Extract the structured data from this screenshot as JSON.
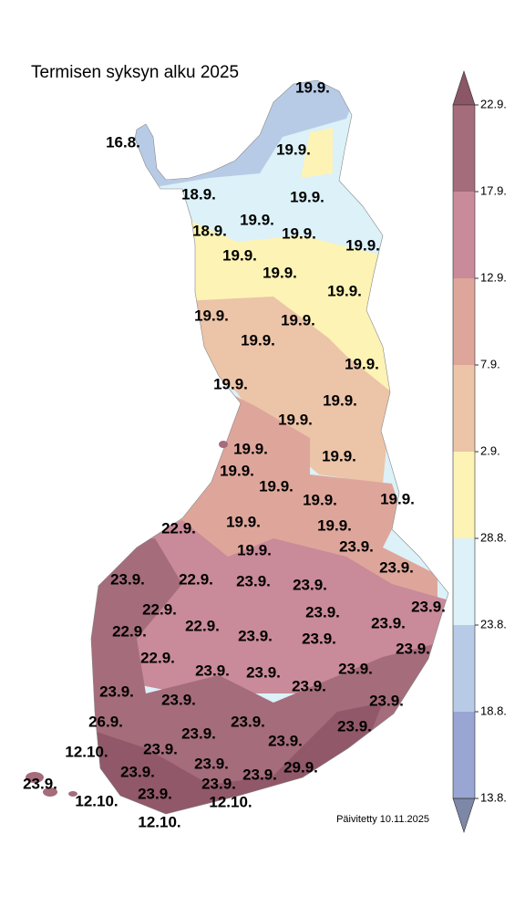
{
  "title": "Termisen syksyn alku 2025",
  "updated": "Päivitetty 10.11.2025",
  "labels": [
    "19.9.",
    "16.8.",
    "19.9.",
    "18.9.",
    "19.9.",
    "19.9.",
    "18.9.",
    "19.9.",
    "19.9.",
    "19.9.",
    "19.9.",
    "19.9.",
    "19.9.",
    "19.9.",
    "19.9.",
    "19.9.",
    "19.9.",
    "19.9.",
    "19.9.",
    "19.9.",
    "19.9.",
    "19.9.",
    "19.9.",
    "19.9.",
    "19.9.",
    "22.9.",
    "19.9.",
    "19.9.",
    "23.9.",
    "19.9.",
    "23.9.",
    "23.9.",
    "22.9.",
    "23.9.",
    "23.9.",
    "22.9.",
    "23.9.",
    "23.9.",
    "22.9.",
    "23.9.",
    "22.9.",
    "23.9.",
    "23.9.",
    "23.9.",
    "22.9.",
    "23.9.",
    "23.9.",
    "23.9.",
    "23.9.",
    "23.9.",
    "23.9.",
    "23.9.",
    "26.9.",
    "23.9.",
    "23.9.",
    "23.9.",
    "23.9.",
    "12.10.",
    "23.9.",
    "23.9.",
    "29.9.",
    "23.9.",
    "23.9.",
    "23.9.",
    "23.9.",
    "23.9.",
    "12.10.",
    "12.10.",
    "12.10."
  ],
  "legend": {
    "ticks": [
      "22.9.",
      "17.9.",
      "12.9.",
      "7.9.",
      "2.9.",
      "28.8.",
      "23.8.",
      "18.8.",
      "13.8."
    ],
    "colors": [
      "#a56c7b",
      "#c98a99",
      "#dea69a",
      "#ecc4a8",
      "#fdf3b5",
      "#dcf1f8",
      "#b8cbe6",
      "#99a5d3"
    ],
    "over_color": "#8b5666",
    "under_color": "#7d87a6"
  }
}
